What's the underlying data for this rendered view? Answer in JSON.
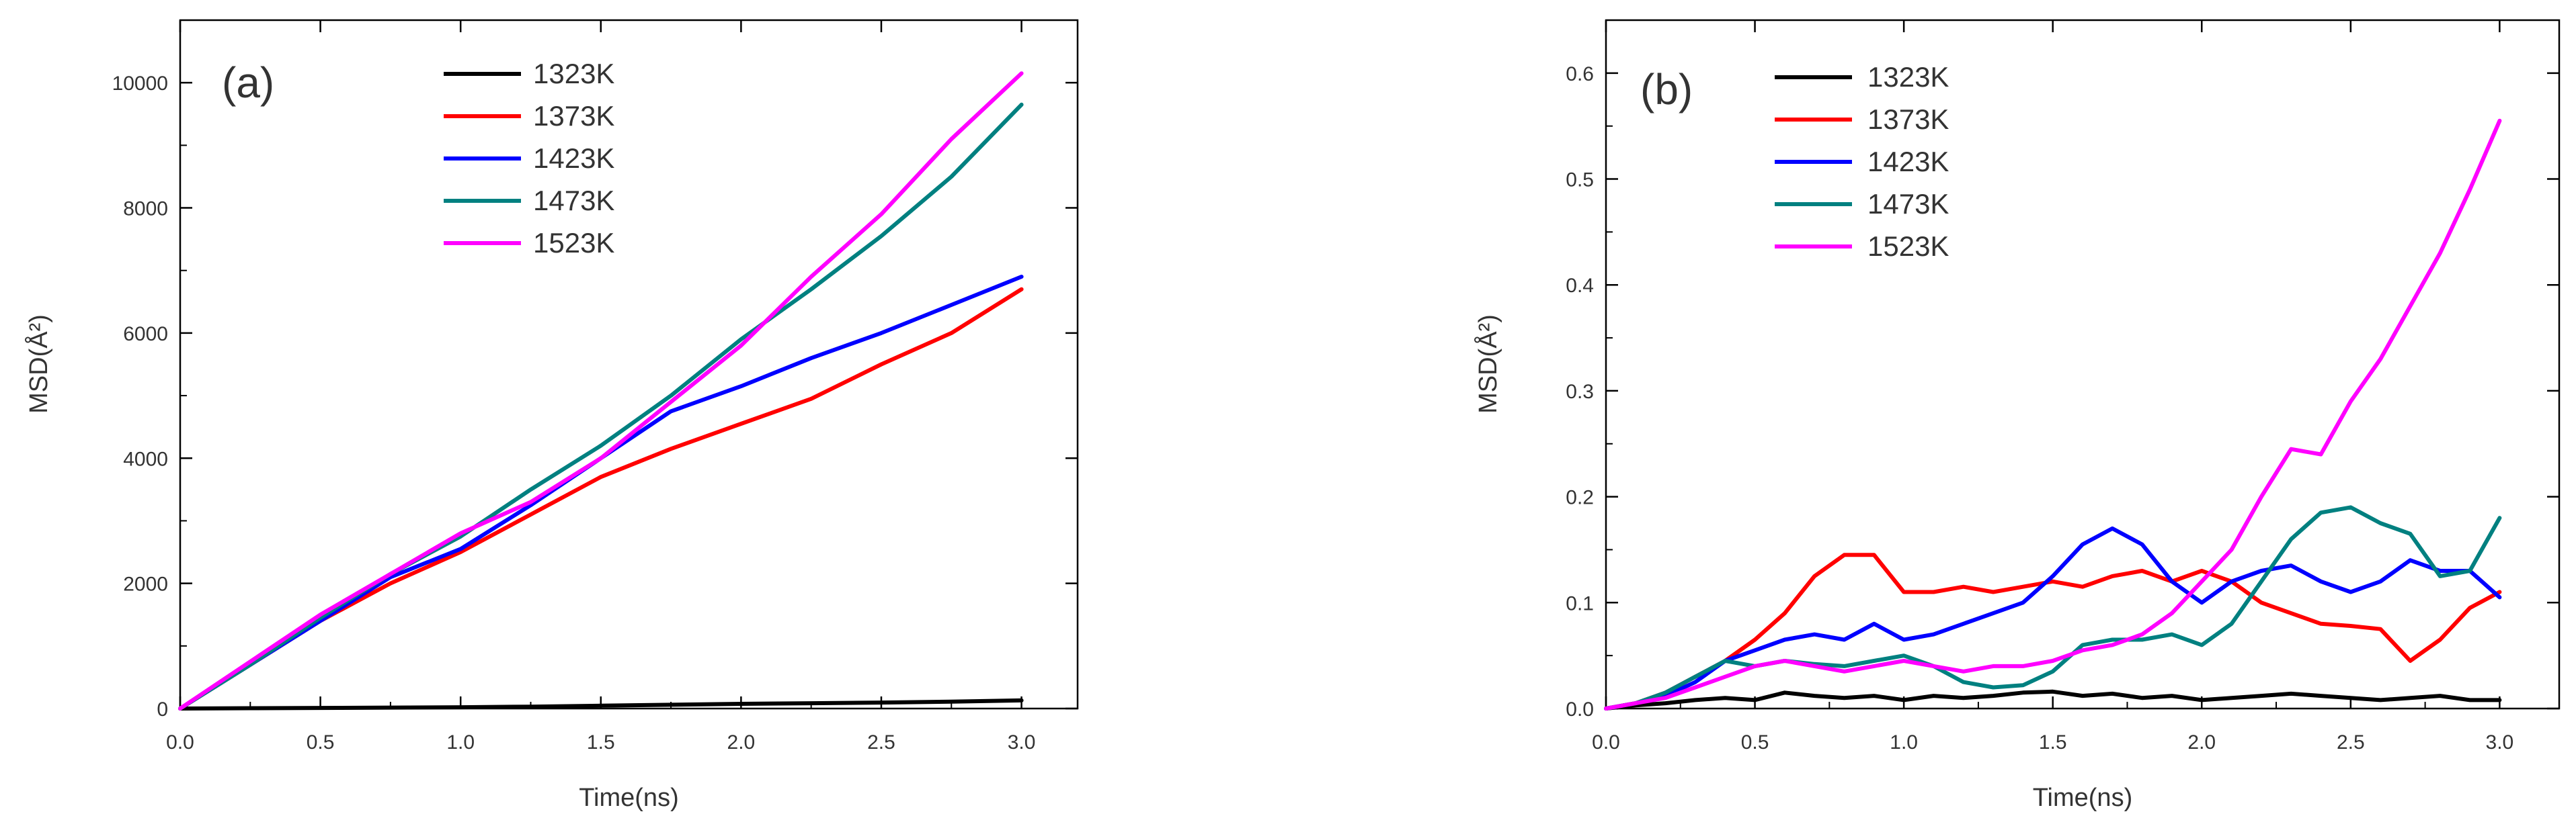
{
  "chart_data": [
    {
      "type": "line",
      "panel_label": "(a)",
      "xlabel": "Time(ns)",
      "ylabel": "MSD(Å²)",
      "xlim": [
        0,
        3.2
      ],
      "ylim": [
        0,
        11000
      ],
      "x_ticks": [
        0.0,
        0.5,
        1.0,
        1.5,
        2.0,
        2.5,
        3.0
      ],
      "x_tick_labels": [
        "0.0",
        "0.5",
        "1.0",
        "1.5",
        "2.0",
        "2.5",
        "3.0"
      ],
      "y_ticks": [
        0,
        2000,
        4000,
        6000,
        8000,
        10000
      ],
      "y_tick_labels": [
        "0",
        "2000",
        "4000",
        "6000",
        "8000",
        "10000"
      ],
      "legend_position": "top-center",
      "x": [
        0.0,
        0.25,
        0.5,
        0.75,
        1.0,
        1.25,
        1.5,
        1.75,
        2.0,
        2.25,
        2.5,
        2.75,
        3.0
      ],
      "series": [
        {
          "name": "1323K",
          "color": "#000000",
          "values": [
            0,
            5,
            10,
            15,
            20,
            30,
            45,
            60,
            75,
            85,
            95,
            110,
            130
          ]
        },
        {
          "name": "1373K",
          "color": "#ff0000",
          "values": [
            0,
            700,
            1400,
            2000,
            2500,
            3100,
            3700,
            4150,
            4550,
            4950,
            5500,
            6000,
            6700
          ]
        },
        {
          "name": "1423K",
          "color": "#0000ff",
          "values": [
            0,
            700,
            1400,
            2100,
            2550,
            3250,
            4000,
            4750,
            5150,
            5600,
            6000,
            6450,
            6900
          ]
        },
        {
          "name": "1473K",
          "color": "#008080",
          "values": [
            0,
            700,
            1450,
            2150,
            2750,
            3500,
            4200,
            5000,
            5900,
            6700,
            7550,
            8500,
            9650
          ]
        },
        {
          "name": "1523K",
          "color": "#ff00ff",
          "values": [
            0,
            750,
            1500,
            2150,
            2800,
            3300,
            4000,
            4900,
            5800,
            6900,
            7900,
            9100,
            10150
          ]
        }
      ]
    },
    {
      "type": "line",
      "panel_label": "(b)",
      "xlabel": "Time(ns)",
      "ylabel": "MSD(Å²)",
      "xlim": [
        0,
        3.2
      ],
      "ylim": [
        0,
        0.65
      ],
      "x_ticks": [
        0.0,
        0.5,
        1.0,
        1.5,
        2.0,
        2.5,
        3.0
      ],
      "x_tick_labels": [
        "0.0",
        "0.5",
        "1.0",
        "1.5",
        "2.0",
        "2.5",
        "3.0"
      ],
      "y_ticks": [
        0.0,
        0.1,
        0.2,
        0.3,
        0.4,
        0.5,
        0.6
      ],
      "y_tick_labels": [
        "0.0",
        "0.1",
        "0.2",
        "0.3",
        "0.4",
        "0.5",
        "0.6"
      ],
      "legend_position": "top-center",
      "x": [
        0.0,
        0.1,
        0.2,
        0.3,
        0.4,
        0.5,
        0.6,
        0.7,
        0.8,
        0.9,
        1.0,
        1.1,
        1.2,
        1.3,
        1.4,
        1.5,
        1.6,
        1.7,
        1.8,
        1.9,
        2.0,
        2.1,
        2.2,
        2.3,
        2.4,
        2.5,
        2.6,
        2.7,
        2.8,
        2.9,
        3.0
      ],
      "series": [
        {
          "name": "1323K",
          "color": "#000000",
          "values": [
            0.0,
            0.003,
            0.005,
            0.008,
            0.01,
            0.008,
            0.015,
            0.012,
            0.01,
            0.012,
            0.008,
            0.012,
            0.01,
            0.012,
            0.015,
            0.016,
            0.012,
            0.014,
            0.01,
            0.012,
            0.008,
            0.01,
            0.012,
            0.014,
            0.012,
            0.01,
            0.008,
            0.01,
            0.012,
            0.008,
            0.008
          ]
        },
        {
          "name": "1373K",
          "color": "#ff0000",
          "values": [
            0.0,
            0.005,
            0.015,
            0.03,
            0.045,
            0.065,
            0.09,
            0.125,
            0.145,
            0.145,
            0.11,
            0.11,
            0.115,
            0.11,
            0.115,
            0.12,
            0.115,
            0.125,
            0.13,
            0.12,
            0.13,
            0.12,
            0.1,
            0.09,
            0.08,
            0.078,
            0.075,
            0.045,
            0.065,
            0.095,
            0.11
          ]
        },
        {
          "name": "1423K",
          "color": "#0000ff",
          "values": [
            0.0,
            0.005,
            0.012,
            0.025,
            0.045,
            0.055,
            0.065,
            0.07,
            0.065,
            0.08,
            0.065,
            0.07,
            0.08,
            0.09,
            0.1,
            0.125,
            0.155,
            0.17,
            0.155,
            0.12,
            0.1,
            0.12,
            0.13,
            0.135,
            0.12,
            0.11,
            0.12,
            0.14,
            0.13,
            0.13,
            0.105
          ]
        },
        {
          "name": "1473K",
          "color": "#008080",
          "values": [
            0.0,
            0.005,
            0.015,
            0.03,
            0.045,
            0.04,
            0.045,
            0.042,
            0.04,
            0.045,
            0.05,
            0.04,
            0.025,
            0.02,
            0.022,
            0.035,
            0.06,
            0.065,
            0.065,
            0.07,
            0.06,
            0.08,
            0.12,
            0.16,
            0.185,
            0.19,
            0.175,
            0.165,
            0.125,
            0.13,
            0.18
          ]
        },
        {
          "name": "1523K",
          "color": "#ff00ff",
          "values": [
            0.0,
            0.005,
            0.01,
            0.02,
            0.03,
            0.04,
            0.045,
            0.04,
            0.035,
            0.04,
            0.045,
            0.04,
            0.035,
            0.04,
            0.04,
            0.045,
            0.055,
            0.06,
            0.07,
            0.09,
            0.12,
            0.15,
            0.2,
            0.245,
            0.24,
            0.29,
            0.33,
            0.38,
            0.43,
            0.49,
            0.555
          ]
        }
      ]
    }
  ]
}
